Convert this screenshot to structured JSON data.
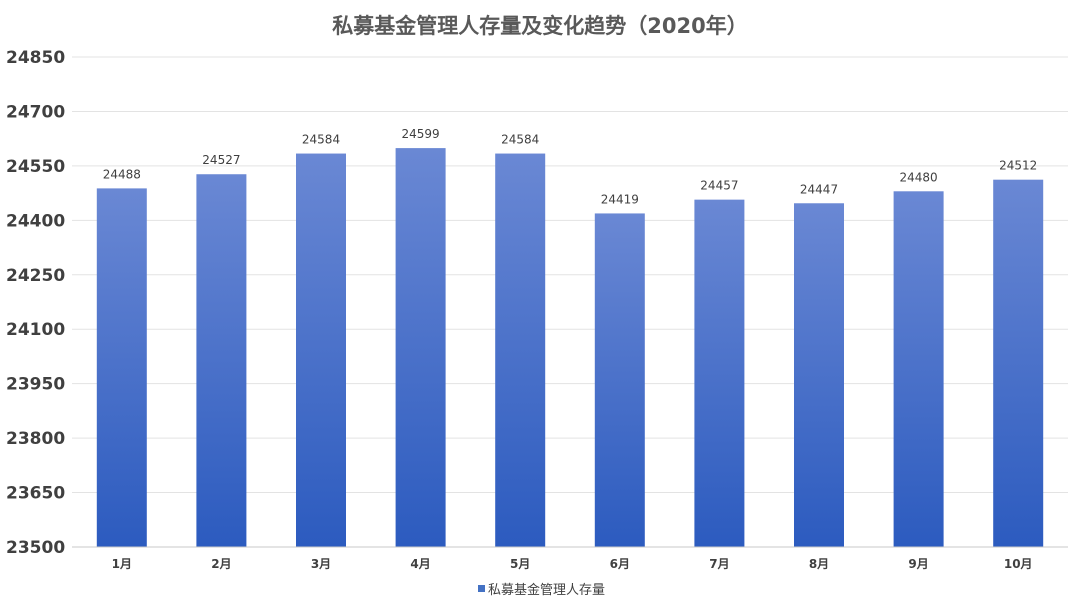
{
  "chart_data": {
    "type": "bar",
    "title": "私募基金管理人存量及变化趋势（2020年）",
    "xlabel": "",
    "ylabel": "",
    "categories": [
      "1月",
      "2月",
      "3月",
      "4月",
      "5月",
      "6月",
      "7月",
      "8月",
      "9月",
      "10月"
    ],
    "series": [
      {
        "name": "私募基金管理人存量",
        "values": [
          24488,
          24527,
          24584,
          24599,
          24584,
          24419,
          24457,
          24447,
          24480,
          24512
        ]
      }
    ],
    "ylim": [
      23500,
      24850
    ],
    "yticks": [
      23500,
      23650,
      23800,
      23950,
      24100,
      24250,
      24400,
      24550,
      24700,
      24850
    ],
    "grid": true,
    "data_labels": true,
    "legend": "bottom",
    "colors": {
      "bar_top": "#6a88d4",
      "bar_bottom": "#2c5bbf",
      "legend_swatch": "#4472c4"
    }
  }
}
